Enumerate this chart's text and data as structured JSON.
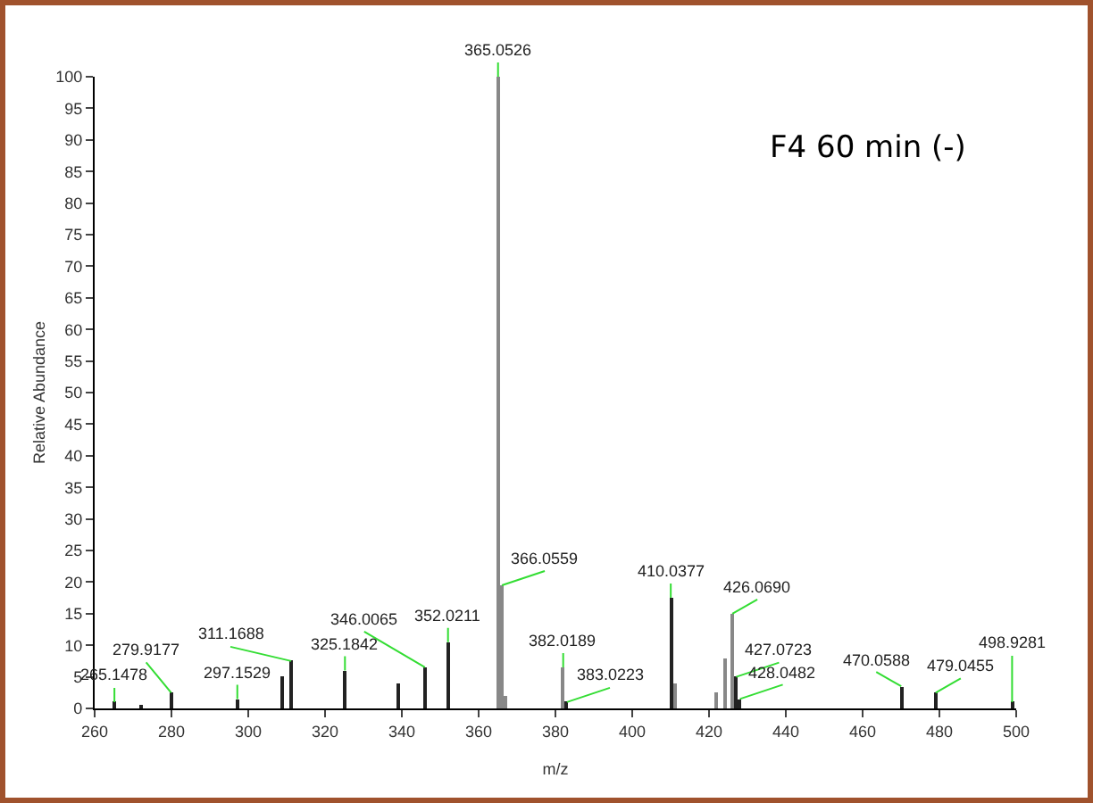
{
  "chart_data": {
    "type": "bar",
    "xlabel": "m/z",
    "ylabel": "Relative Abundance",
    "x": [
      265.1478,
      272,
      279.9177,
      297.1529,
      309,
      311.1688,
      325.1842,
      339,
      346.0065,
      352.0211,
      365.0526,
      366.0559,
      367,
      382.0189,
      383.0223,
      410.0377,
      411,
      422,
      424,
      426.069,
      427.0723,
      428.0482,
      470.0588,
      479.0455,
      498.9281
    ],
    "values": [
      1,
      0.5,
      2.5,
      1.5,
      5,
      7.5,
      6,
      4,
      6.5,
      10.5,
      100,
      19.5,
      2,
      6.5,
      1,
      17.5,
      4,
      2.5,
      8,
      15,
      5,
      1.5,
      3.5,
      2.5,
      1
    ],
    "colors": [
      "#222222",
      "#222222",
      "#222222",
      "#222222",
      "#222222",
      "#222222",
      "#222222",
      "#222222",
      "#222222",
      "#222222",
      "#888888",
      "#888888",
      "#888888",
      "#888888",
      "#222222",
      "#222222",
      "#888888",
      "#888888",
      "#888888",
      "#888888",
      "#222222",
      "#222222",
      "#222222",
      "#222222",
      "#222222"
    ],
    "xlim": [
      260,
      500
    ],
    "xticks": [
      260,
      280,
      300,
      320,
      340,
      360,
      380,
      400,
      420,
      440,
      460,
      480,
      500
    ],
    "ylim": [
      0,
      100
    ],
    "yticks": [
      0,
      5,
      10,
      15,
      20,
      25,
      30,
      35,
      40,
      45,
      50,
      55,
      60,
      65,
      70,
      75,
      80,
      85,
      90,
      95,
      100
    ],
    "annotations": [
      {
        "text": "265.1478",
        "x": 265.1478,
        "y": 1
      },
      {
        "text": "279.9177",
        "x": 279.9177,
        "y": 2.5
      },
      {
        "text": "297.1529",
        "x": 297.1529,
        "y": 1.5
      },
      {
        "text": "311.1688",
        "x": 311.1688,
        "y": 7.5
      },
      {
        "text": "325.1842",
        "x": 325.1842,
        "y": 6
      },
      {
        "text": "346.0065",
        "x": 346.0065,
        "y": 6.5
      },
      {
        "text": "352.0211",
        "x": 352.0211,
        "y": 10.5
      },
      {
        "text": "365.0526",
        "x": 365.0526,
        "y": 100
      },
      {
        "text": "366.0559",
        "x": 366.0559,
        "y": 19.5
      },
      {
        "text": "382.0189",
        "x": 382.0189,
        "y": 6.5
      },
      {
        "text": "383.0223",
        "x": 383.0223,
        "y": 1
      },
      {
        "text": "410.0377",
        "x": 410.0377,
        "y": 17.5
      },
      {
        "text": "426.0690",
        "x": 426.069,
        "y": 15
      },
      {
        "text": "427.0723",
        "x": 427.0723,
        "y": 5
      },
      {
        "text": "428.0482",
        "x": 428.0482,
        "y": 1.5
      },
      {
        "text": "470.0588",
        "x": 470.0588,
        "y": 3.5
      },
      {
        "text": "479.0455",
        "x": 479.0455,
        "y": 2.5
      },
      {
        "text": "498.9281",
        "x": 498.9281,
        "y": 1
      },
      "F4 60 min (-)"
    ]
  }
}
